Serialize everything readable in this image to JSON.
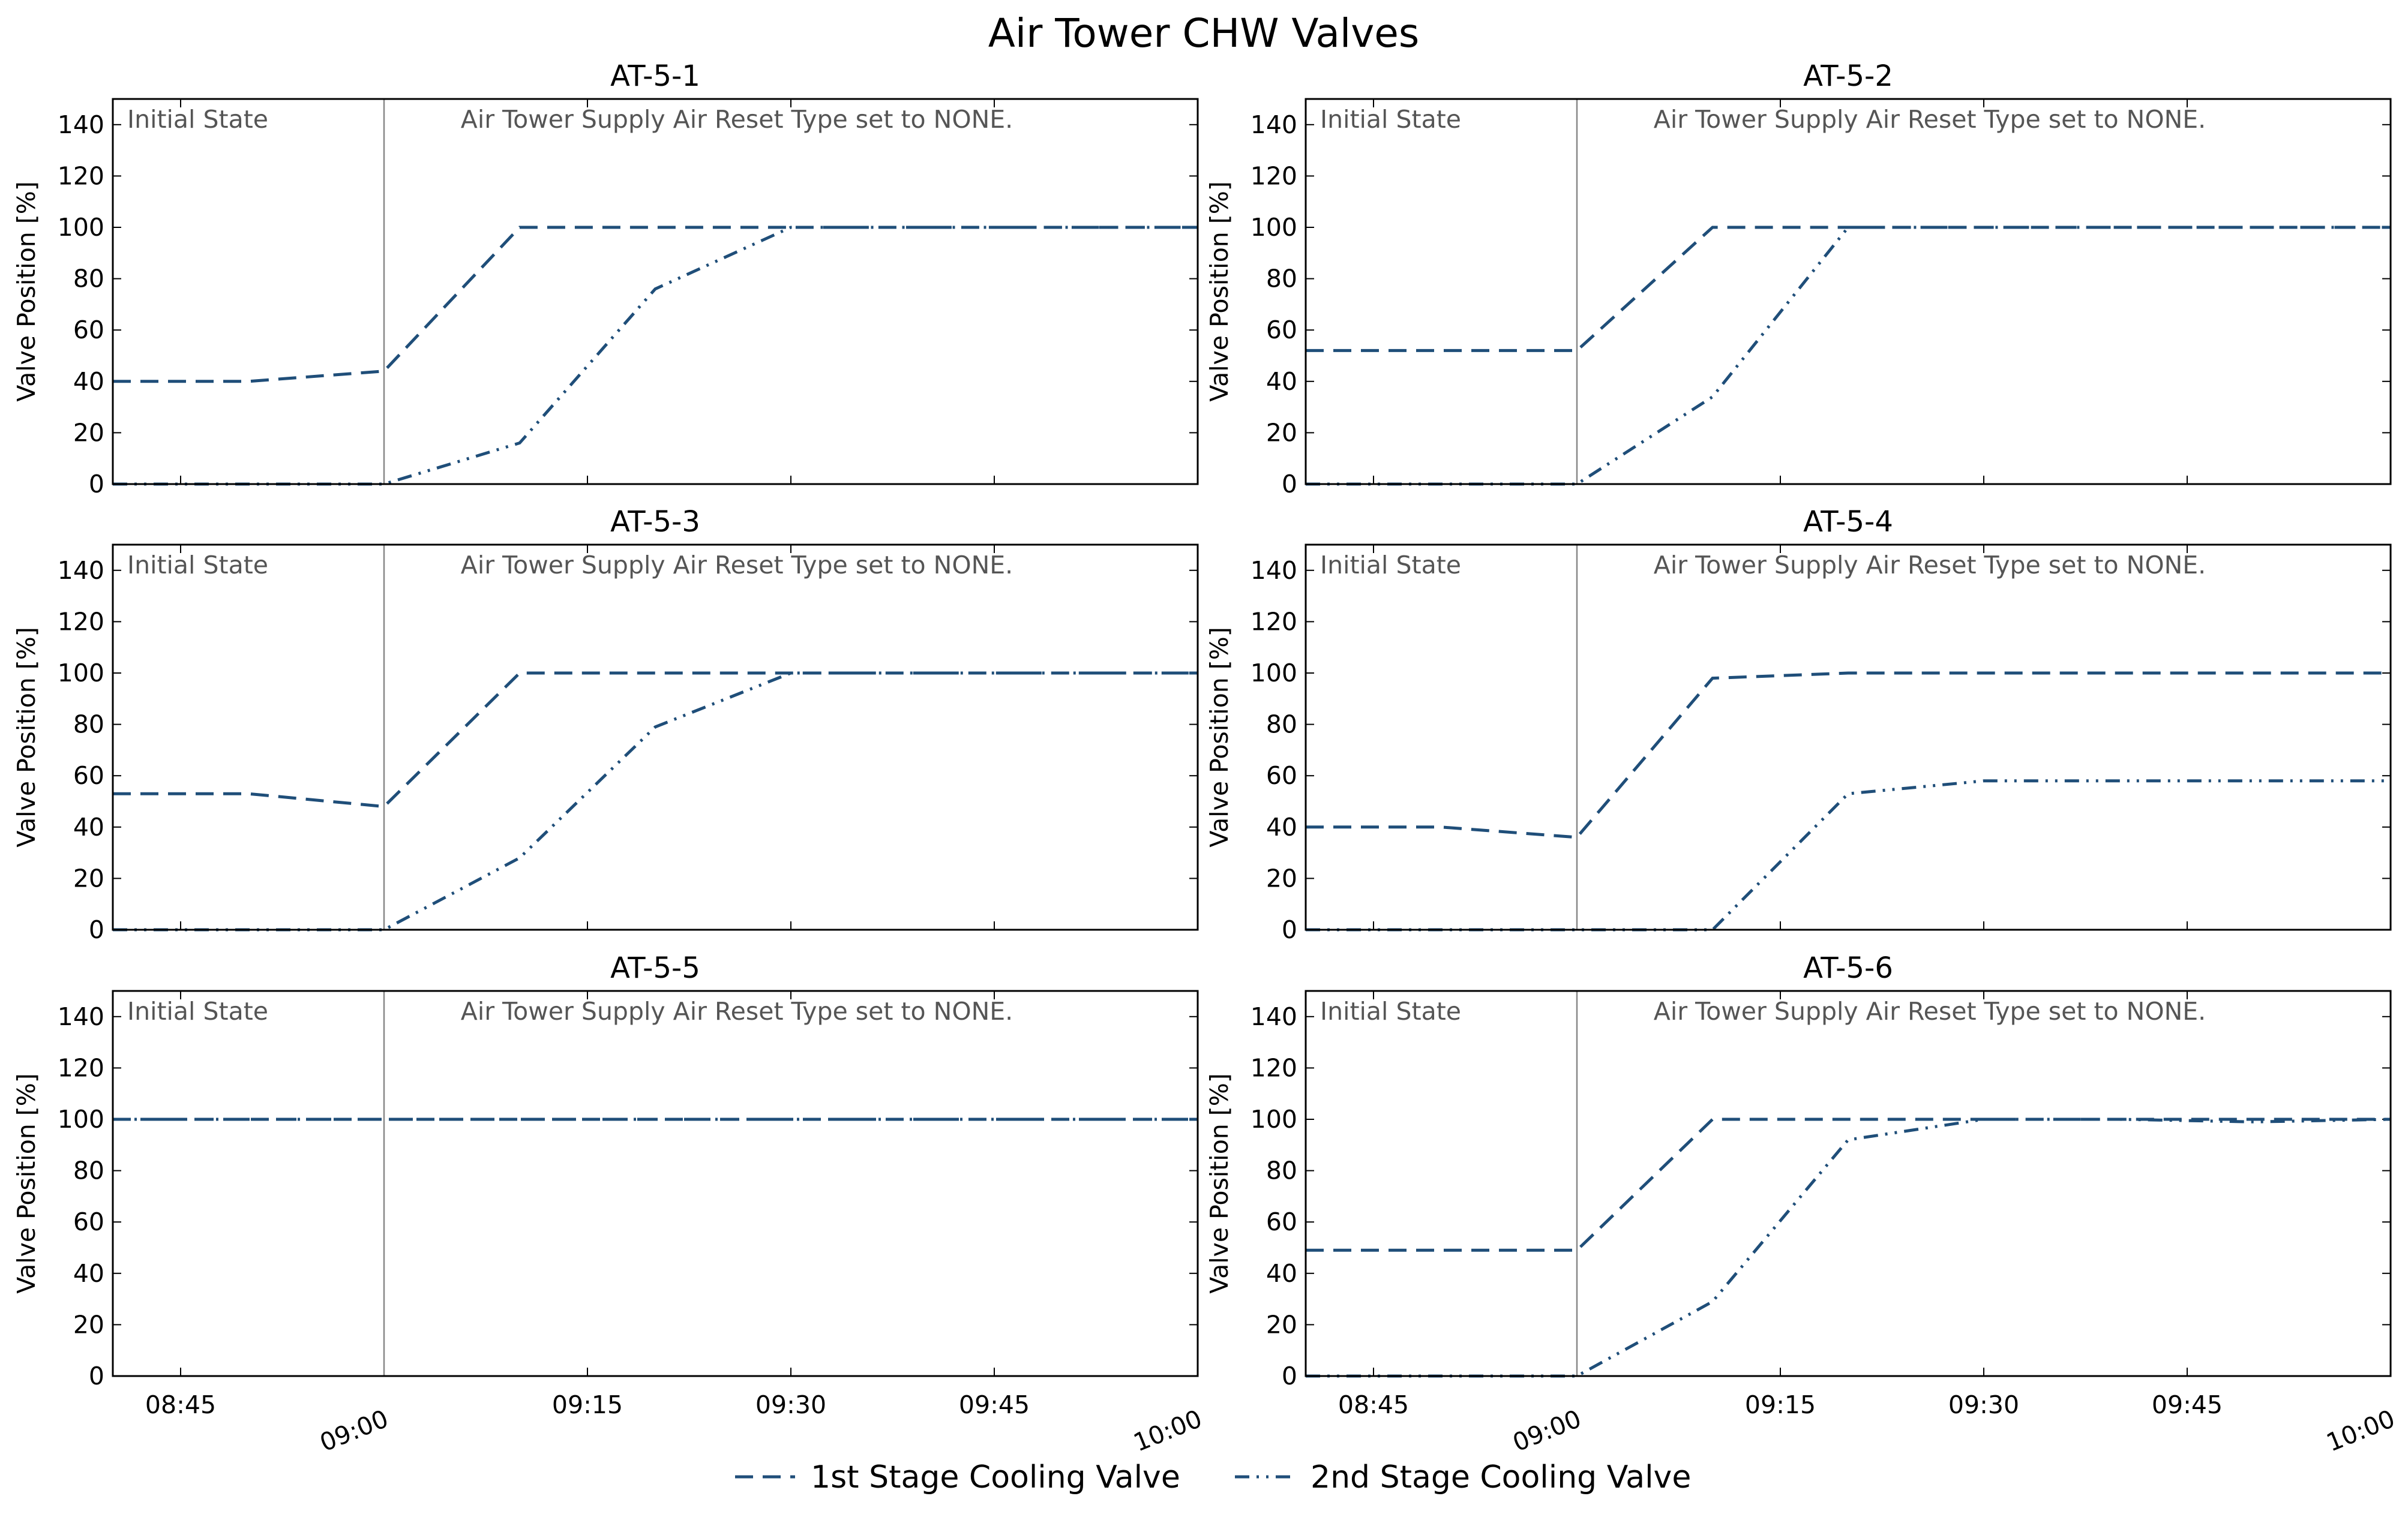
{
  "figure": {
    "title": "Air Tower CHW Valves"
  },
  "style": {
    "series_color": "#1f4e79",
    "event_line_color": "#888888",
    "annotation_color": "#555555"
  },
  "legend": {
    "placement": "bottom-center",
    "items": [
      {
        "label": "1st Stage Cooling Valve",
        "dash": "dashed"
      },
      {
        "label": "2nd Stage Cooling Valve",
        "dash": "dash-dot-dot"
      }
    ]
  },
  "chart_data": [
    {
      "type": "line",
      "title": "AT-5-1",
      "ylabel": "Valve Position [%]",
      "xlabel": "",
      "ylim": [
        0,
        150
      ],
      "yticks": [
        "0",
        "20",
        "40",
        "60",
        "80",
        "100",
        "120",
        "140"
      ],
      "xlim": [
        "08:40",
        "10:00"
      ],
      "xticks": [
        "08:45",
        "09:00",
        "09:15",
        "09:30",
        "09:45",
        "10:00"
      ],
      "grid": false,
      "event_time": "09:00",
      "annotations": {
        "left": "Initial State",
        "right": "Air Tower Supply Air Reset Type set to NONE."
      },
      "series": [
        {
          "name": "1st Stage Cooling Valve",
          "x": [
            "08:40",
            "08:50",
            "09:00",
            "09:10",
            "09:20",
            "09:30",
            "09:40",
            "09:50",
            "10:00"
          ],
          "values": [
            40,
            40,
            44,
            100,
            100,
            100,
            100,
            100,
            100
          ]
        },
        {
          "name": "2nd Stage Cooling Valve",
          "x": [
            "08:40",
            "08:50",
            "09:00",
            "09:10",
            "09:20",
            "09:30",
            "09:40",
            "09:50",
            "10:00"
          ],
          "values": [
            0,
            0,
            0,
            16,
            76,
            100,
            100,
            100,
            100
          ]
        }
      ]
    },
    {
      "type": "line",
      "title": "AT-5-2",
      "ylabel": "Valve Position [%]",
      "xlabel": "",
      "ylim": [
        0,
        150
      ],
      "yticks": [
        "0",
        "20",
        "40",
        "60",
        "80",
        "100",
        "120",
        "140"
      ],
      "xlim": [
        "08:40",
        "10:00"
      ],
      "xticks": [
        "08:45",
        "09:00",
        "09:15",
        "09:30",
        "09:45",
        "10:00"
      ],
      "grid": false,
      "event_time": "09:00",
      "annotations": {
        "left": "Initial State",
        "right": "Air Tower Supply Air Reset Type set to NONE."
      },
      "series": [
        {
          "name": "1st Stage Cooling Valve",
          "x": [
            "08:40",
            "08:50",
            "09:00",
            "09:10",
            "09:20",
            "09:30",
            "09:40",
            "09:50",
            "10:00"
          ],
          "values": [
            52,
            52,
            52,
            100,
            100,
            100,
            100,
            100,
            100
          ]
        },
        {
          "name": "2nd Stage Cooling Valve",
          "x": [
            "08:40",
            "08:50",
            "09:00",
            "09:10",
            "09:20",
            "09:30",
            "09:40",
            "09:50",
            "10:00"
          ],
          "values": [
            0,
            0,
            0,
            34,
            100,
            100,
            100,
            100,
            100
          ]
        }
      ]
    },
    {
      "type": "line",
      "title": "AT-5-3",
      "ylabel": "Valve Position [%]",
      "xlabel": "",
      "ylim": [
        0,
        150
      ],
      "yticks": [
        "0",
        "20",
        "40",
        "60",
        "80",
        "100",
        "120",
        "140"
      ],
      "xlim": [
        "08:40",
        "10:00"
      ],
      "xticks": [
        "08:45",
        "09:00",
        "09:15",
        "09:30",
        "09:45",
        "10:00"
      ],
      "grid": false,
      "event_time": "09:00",
      "annotations": {
        "left": "Initial State",
        "right": "Air Tower Supply Air Reset Type set to NONE."
      },
      "series": [
        {
          "name": "1st Stage Cooling Valve",
          "x": [
            "08:40",
            "08:50",
            "09:00",
            "09:10",
            "09:20",
            "09:30",
            "09:40",
            "09:50",
            "10:00"
          ],
          "values": [
            53,
            53,
            48,
            100,
            100,
            100,
            100,
            100,
            100
          ]
        },
        {
          "name": "2nd Stage Cooling Valve",
          "x": [
            "08:40",
            "08:50",
            "09:00",
            "09:10",
            "09:20",
            "09:30",
            "09:40",
            "09:50",
            "10:00"
          ],
          "values": [
            0,
            0,
            0,
            28,
            79,
            100,
            100,
            100,
            100
          ]
        }
      ]
    },
    {
      "type": "line",
      "title": "AT-5-4",
      "ylabel": "Valve Position [%]",
      "xlabel": "",
      "ylim": [
        0,
        150
      ],
      "yticks": [
        "0",
        "20",
        "40",
        "60",
        "80",
        "100",
        "120",
        "140"
      ],
      "xlim": [
        "08:40",
        "10:00"
      ],
      "xticks": [
        "08:45",
        "09:00",
        "09:15",
        "09:30",
        "09:45",
        "10:00"
      ],
      "grid": false,
      "event_time": "09:00",
      "annotations": {
        "left": "Initial State",
        "right": "Air Tower Supply Air Reset Type set to NONE."
      },
      "series": [
        {
          "name": "1st Stage Cooling Valve",
          "x": [
            "08:40",
            "08:50",
            "09:00",
            "09:10",
            "09:20",
            "09:30",
            "09:40",
            "09:50",
            "10:00"
          ],
          "values": [
            40,
            40,
            36,
            98,
            100,
            100,
            100,
            100,
            100
          ]
        },
        {
          "name": "2nd Stage Cooling Valve",
          "x": [
            "08:40",
            "08:50",
            "09:00",
            "09:10",
            "09:20",
            "09:30",
            "09:40",
            "09:50",
            "10:00"
          ],
          "values": [
            0,
            0,
            0,
            0,
            53,
            58,
            58,
            58,
            58
          ]
        }
      ]
    },
    {
      "type": "line",
      "title": "AT-5-5",
      "ylabel": "Valve Position [%]",
      "xlabel": "",
      "ylim": [
        0,
        150
      ],
      "yticks": [
        "0",
        "20",
        "40",
        "60",
        "80",
        "100",
        "120",
        "140"
      ],
      "xlim": [
        "08:40",
        "10:00"
      ],
      "xticks": [
        "08:45",
        "09:00",
        "09:15",
        "09:30",
        "09:45",
        "10:00"
      ],
      "grid": false,
      "event_time": "09:00",
      "annotations": {
        "left": "Initial State",
        "right": "Air Tower Supply Air Reset Type set to NONE."
      },
      "series": [
        {
          "name": "1st Stage Cooling Valve",
          "x": [
            "08:40",
            "08:50",
            "09:00",
            "09:10",
            "09:20",
            "09:30",
            "09:40",
            "09:50",
            "10:00"
          ],
          "values": [
            100,
            100,
            100,
            100,
            100,
            100,
            100,
            100,
            100
          ]
        },
        {
          "name": "2nd Stage Cooling Valve",
          "x": [
            "08:40",
            "08:50",
            "09:00",
            "09:10",
            "09:20",
            "09:30",
            "09:40",
            "09:50",
            "10:00"
          ],
          "values": [
            100,
            100,
            100,
            100,
            100,
            100,
            100,
            100,
            100
          ]
        }
      ]
    },
    {
      "type": "line",
      "title": "AT-5-6",
      "ylabel": "Valve Position [%]",
      "xlabel": "",
      "ylim": [
        0,
        150
      ],
      "yticks": [
        "0",
        "20",
        "40",
        "60",
        "80",
        "100",
        "120",
        "140"
      ],
      "xlim": [
        "08:40",
        "10:00"
      ],
      "xticks": [
        "08:45",
        "09:00",
        "09:15",
        "09:30",
        "09:45",
        "10:00"
      ],
      "grid": false,
      "event_time": "09:00",
      "annotations": {
        "left": "Initial State",
        "right": "Air Tower Supply Air Reset Type set to NONE."
      },
      "series": [
        {
          "name": "1st Stage Cooling Valve",
          "x": [
            "08:40",
            "08:50",
            "09:00",
            "09:10",
            "09:20",
            "09:30",
            "09:40",
            "09:50",
            "10:00"
          ],
          "values": [
            49,
            49,
            49,
            100,
            100,
            100,
            100,
            100,
            100
          ]
        },
        {
          "name": "2nd Stage Cooling Valve",
          "x": [
            "08:40",
            "08:50",
            "09:00",
            "09:10",
            "09:20",
            "09:30",
            "09:40",
            "09:50",
            "10:00"
          ],
          "values": [
            0,
            0,
            0,
            29,
            92,
            100,
            100,
            99,
            100
          ]
        }
      ]
    }
  ]
}
